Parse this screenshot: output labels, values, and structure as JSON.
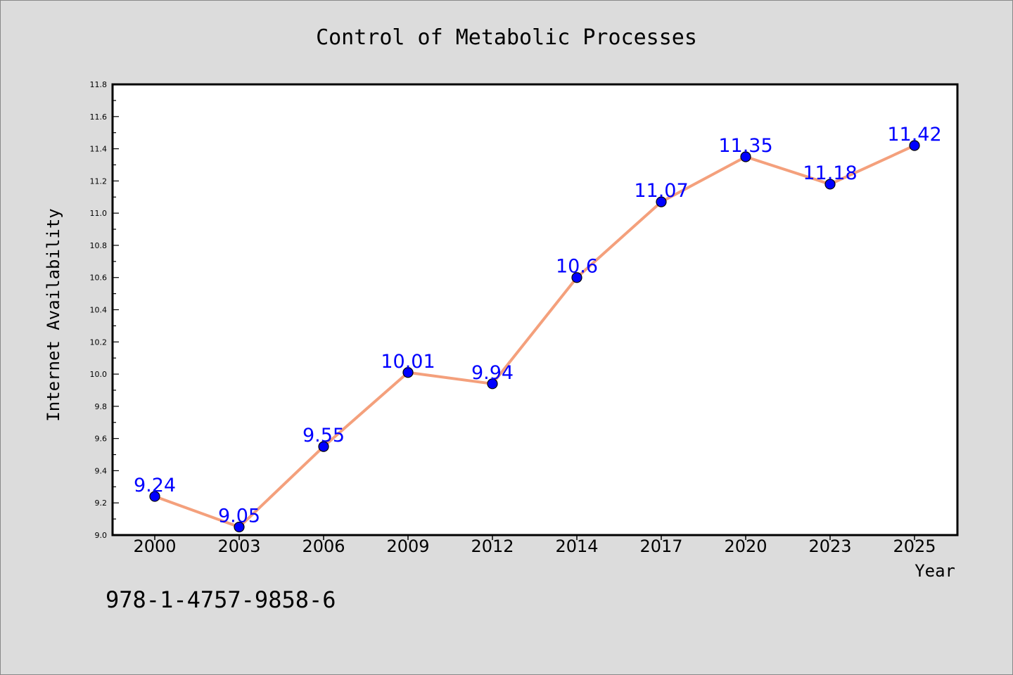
{
  "chart_data": {
    "type": "line",
    "title": "Control of Metabolic Processes",
    "xlabel": "Year",
    "ylabel": "Internet Availability",
    "categories": [
      "2000",
      "2003",
      "2006",
      "2009",
      "2012",
      "2014",
      "2017",
      "2020",
      "2023",
      "2025"
    ],
    "series": [
      {
        "values": [
          9.24,
          9.05,
          9.55,
          10.01,
          9.94,
          10.6,
          11.07,
          11.35,
          11.18,
          11.42
        ],
        "data_labels": [
          "9.24",
          "9.05",
          "9.55",
          "10.01",
          "9.94",
          "10.6",
          "11.07",
          "11.35",
          "11.18",
          "11.42"
        ],
        "line_color": "#f4a07c",
        "marker_color": "#0000ff",
        "label_color": "#0000ff"
      }
    ],
    "ylim": [
      9.0,
      11.8
    ],
    "yticks": [
      "9.0",
      "9.2",
      "9.4",
      "9.6",
      "9.8",
      "10.0",
      "10.2",
      "10.4",
      "10.6",
      "10.8",
      "11.0",
      "11.2",
      "11.4",
      "11.6",
      "11.8"
    ],
    "grid": false,
    "legend": "none"
  },
  "footer_text": "978-1-4757-9858-6",
  "colors": {
    "background": "#dcdcdc",
    "plot_background": "#ffffff",
    "axis": "#000000"
  }
}
